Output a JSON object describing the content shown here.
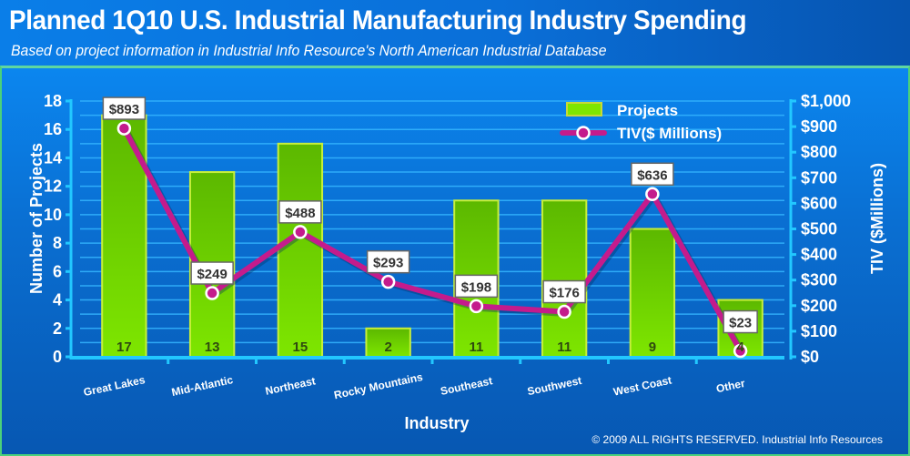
{
  "header": {
    "title": "Planned 1Q10 U.S. Industrial Manufacturing Industry Spending",
    "subtitle": "Based on project information in Industrial Info Resource's North American Industrial Database"
  },
  "footer": {
    "copyright": "© 2009 ALL RIGHTS RESERVED. Industrial Info Resources"
  },
  "colors": {
    "bar": "#7ee600",
    "bar_top": "#5cb800",
    "bar_border": "#c8ef3a",
    "line": "#c41b8c",
    "marker_fill": "#c41b8c",
    "marker_ring": "#ffffff",
    "axis": "#22c8ff",
    "grid": "#35b6ff"
  },
  "chart_data": {
    "type": "bar",
    "title": "Planned 1Q10 U.S. Industrial Manufacturing Industry Spending",
    "subtitle": "Based on project information in Industrial Info Resource's North American Industrial Database",
    "xlabel": "Industry",
    "ylabel": "Number of Projects",
    "y2label": "TIV ($Millions)",
    "categories": [
      "Great Lakes",
      "Mid-Atlantic",
      "Northeast",
      "Rocky Mountains",
      "Southeast",
      "Southwest",
      "West Coast",
      "Other"
    ],
    "series": [
      {
        "name": "Projects",
        "type": "bar",
        "axis": "left",
        "values": [
          17,
          13,
          15,
          2,
          11,
          11,
          9,
          4
        ],
        "labels": [
          "17",
          "13",
          "15",
          "2",
          "11",
          "11",
          "9",
          "4"
        ]
      },
      {
        "name": "TIV($ Millions)",
        "type": "line",
        "axis": "right",
        "values": [
          893,
          249,
          488,
          293,
          198,
          176,
          636,
          23
        ],
        "labels": [
          "$893",
          "$249",
          "$488",
          "$293",
          "$198",
          "$176",
          "$636",
          "$23"
        ]
      }
    ],
    "ylim": [
      0,
      18
    ],
    "yticks": [
      "0",
      "2",
      "4",
      "6",
      "8",
      "10",
      "12",
      "14",
      "16",
      "18"
    ],
    "y2lim": [
      0,
      1000
    ],
    "y2ticks": [
      "$0",
      "$100",
      "$200",
      "$300",
      "$400",
      "$500",
      "$600",
      "$700",
      "$800",
      "$900",
      "$1,000"
    ],
    "grid": true,
    "legend": {
      "position": "top-right",
      "entries": [
        "Projects",
        "TIV($ Millions)"
      ]
    }
  }
}
